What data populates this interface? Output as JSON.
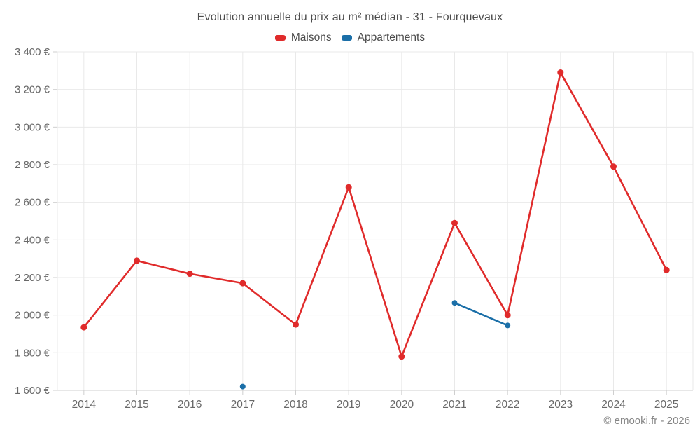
{
  "title": "Evolution annuelle du prix au m² médian - 31 - Fourquevaux",
  "legend": {
    "items": [
      {
        "label": "Maisons",
        "color": "#e02b2b"
      },
      {
        "label": "Appartements",
        "color": "#1b6fa8"
      }
    ]
  },
  "watermark": "© emooki.fr - 2026",
  "chart_data": {
    "type": "line",
    "title": "Evolution annuelle du prix au m² médian - 31 - Fourquevaux",
    "categories": [
      "2014",
      "2015",
      "2016",
      "2017",
      "2018",
      "2019",
      "2020",
      "2021",
      "2022",
      "2023",
      "2024",
      "2025"
    ],
    "series": [
      {
        "name": "Maisons",
        "color": "#e02b2b",
        "marker_radius": 4.5,
        "values": [
          1935,
          2290,
          2220,
          2170,
          1950,
          2680,
          1780,
          2490,
          2000,
          3290,
          2790,
          2240
        ]
      },
      {
        "name": "Appartements",
        "color": "#1b6fa8",
        "marker_radius": 4,
        "values": [
          null,
          null,
          null,
          1620,
          null,
          null,
          null,
          2065,
          1945,
          null,
          null,
          null
        ]
      }
    ],
    "ylim": [
      1600,
      3400
    ],
    "ytick_values": [
      1600,
      1800,
      2000,
      2200,
      2400,
      2600,
      2800,
      3000,
      3200,
      3400
    ],
    "ytick_labels": [
      "1 600 €",
      "1 800 €",
      "2 000 €",
      "2 200 €",
      "2 400 €",
      "2 600 €",
      "2 800 €",
      "3 000 €",
      "3 200 €",
      "3 400 €"
    ],
    "xlabel": "",
    "ylabel": "",
    "grid": true,
    "legend_position": "top",
    "colors": {
      "grid": "#e9e9e9",
      "axis": "#cfcfcf",
      "tick_text": "#686868",
      "title_text": "#4c4c4c",
      "watermark_text": "#858585"
    }
  }
}
